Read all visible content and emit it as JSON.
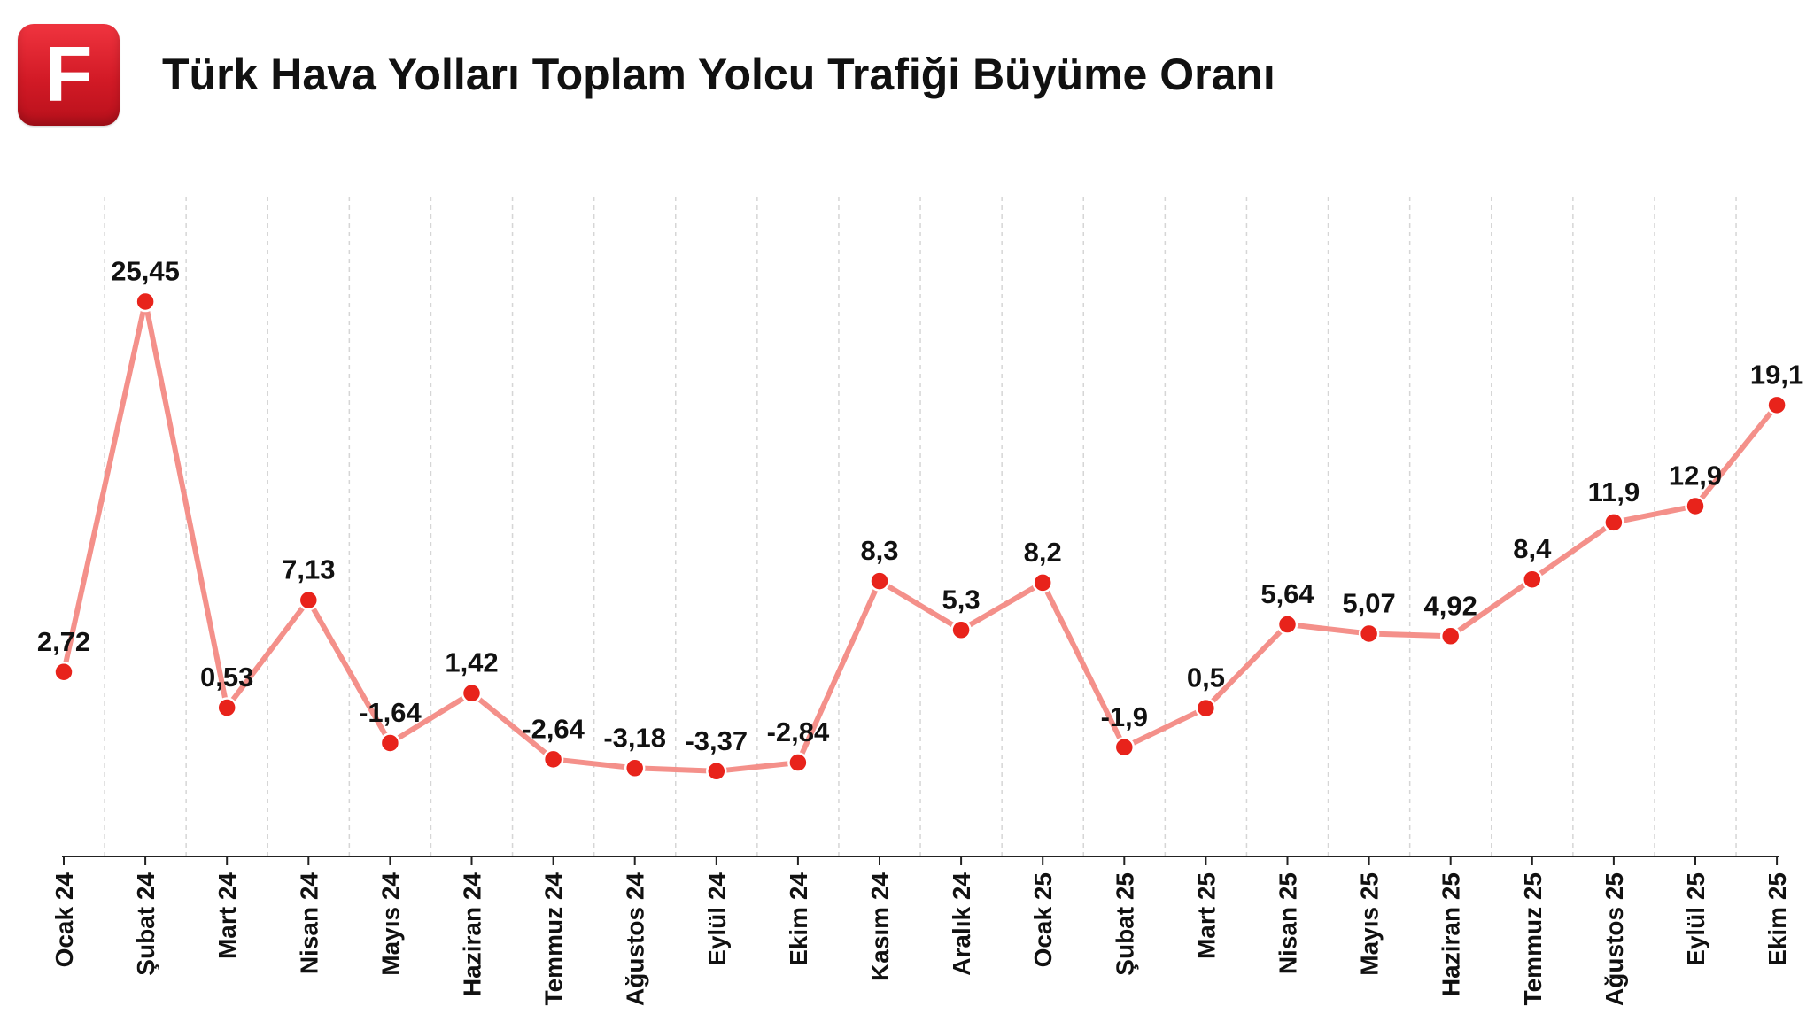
{
  "header": {
    "logo_letter": "F",
    "title": "Türk Hava Yolları Toplam Yolcu Trafiği Büyüme Oranı"
  },
  "colors": {
    "line": "#f4908a",
    "marker": "#e8231b",
    "grid": "#d6d6d6",
    "axis": "#222222",
    "logo": "#d71f2b"
  },
  "chart_data": {
    "type": "line",
    "title": "Türk Hava Yolları Toplam Yolcu Trafiği Büyüme Oranı",
    "categories": [
      "Ocak 24",
      "Şubat 24",
      "Mart 24",
      "Nisan 24",
      "Mayıs 24",
      "Haziran 24",
      "Temmuz 24",
      "Ağustos 24",
      "Eylül 24",
      "Ekim 24",
      "Kasım 24",
      "Aralık 24",
      "Ocak 25",
      "Şubat 25",
      "Mart 25",
      "Nisan 25",
      "Mayıs 25",
      "Haziran 25",
      "Temmuz 25",
      "Ağustos 25",
      "Eylül 25",
      "Ekim 25"
    ],
    "values": [
      2.72,
      25.45,
      0.53,
      7.13,
      -1.64,
      1.42,
      -2.64,
      -3.18,
      -3.37,
      -2.84,
      8.3,
      5.3,
      8.2,
      -1.9,
      0.5,
      5.64,
      5.07,
      4.92,
      8.4,
      11.9,
      12.9,
      19.1
    ],
    "value_labels": [
      "2,72",
      "25,45",
      "0,53",
      "7,13",
      "-1,64",
      "1,42",
      "-2,64",
      "-3,18",
      "-3,37",
      "-2,84",
      "8,3",
      "5,3",
      "8,2",
      "-1,9",
      "0,5",
      "5,64",
      "5,07",
      "4,92",
      "8,4",
      "11,9",
      "12,9",
      "19,1"
    ],
    "ylim": [
      -5.5,
      27
    ],
    "grid": "vertical dashed",
    "legend": "none"
  }
}
